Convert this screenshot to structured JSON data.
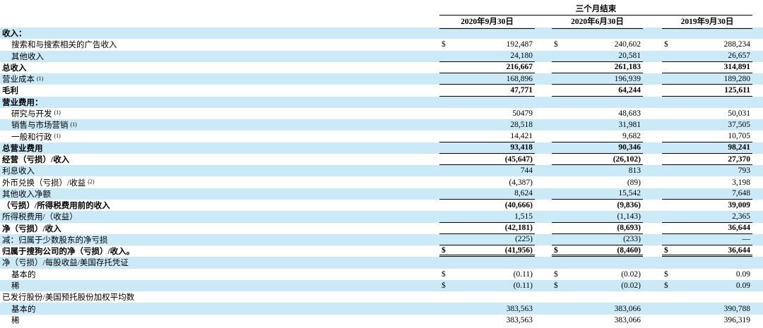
{
  "table": {
    "period_header": "三个月结束",
    "currency_symbol": "$",
    "columns": [
      "2020年9月30日",
      "2020年6月30日",
      "2019年9月30日"
    ],
    "rows": [
      {
        "label": "收入：",
        "sup": "",
        "indent": 0,
        "bold": true,
        "dollar": false,
        "values": [
          "",
          "",
          ""
        ],
        "border": "none"
      },
      {
        "label": "搜索和与搜索相关的广告收入",
        "sup": "",
        "indent": 1,
        "bold": false,
        "dollar": true,
        "values": [
          "192,487",
          "240,602",
          "288,234"
        ],
        "border": "none"
      },
      {
        "label": "其他收入",
        "sup": "",
        "indent": 1,
        "bold": false,
        "dollar": false,
        "values": [
          "24,180",
          "20,581",
          "26,657"
        ],
        "border": "bottom"
      },
      {
        "label": "总收入",
        "sup": "",
        "indent": 0,
        "bold": true,
        "dollar": false,
        "values": [
          "216,667",
          "261,183",
          "314,891"
        ],
        "border": "bottom"
      },
      {
        "label": "营业成本",
        "sup": "(1)",
        "indent": 0,
        "bold": false,
        "dollar": false,
        "values": [
          "168,896",
          "196,939",
          "189,280"
        ],
        "border": "bottom"
      },
      {
        "label": "毛利",
        "sup": "",
        "indent": 0,
        "bold": true,
        "dollar": false,
        "values": [
          "47,771",
          "64,244",
          "125,611"
        ],
        "border": "bottom"
      },
      {
        "label": "营业费用：",
        "sup": "",
        "indent": 0,
        "bold": true,
        "dollar": false,
        "values": [
          "",
          "",
          ""
        ],
        "border": "none"
      },
      {
        "label": "研究与开发",
        "sup": "(1)",
        "indent": 1,
        "bold": false,
        "dollar": false,
        "values": [
          "50479",
          "48,683",
          "50,031"
        ],
        "border": "none"
      },
      {
        "label": "销售与市场营销",
        "sup": "(1)",
        "indent": 1,
        "bold": false,
        "dollar": false,
        "values": [
          "28,518",
          "31,981",
          "37,505"
        ],
        "border": "none"
      },
      {
        "label": "一般和行政",
        "sup": "(1)",
        "indent": 1,
        "bold": false,
        "dollar": false,
        "values": [
          "14,421",
          "9,682",
          "10,705"
        ],
        "border": "bottom"
      },
      {
        "label": "总营业费用",
        "sup": "",
        "indent": 0,
        "bold": true,
        "dollar": false,
        "values": [
          "93,418",
          "90,346",
          "98,241"
        ],
        "border": "bottom"
      },
      {
        "label": "经营（亏损）/收入",
        "sup": "",
        "indent": 0,
        "bold": true,
        "dollar": false,
        "values": [
          "(45,647)",
          "(26,102)",
          "27,370"
        ],
        "border": "bottom"
      },
      {
        "label": "利息收入",
        "sup": "",
        "indent": 0,
        "bold": false,
        "dollar": false,
        "values": [
          "744",
          "813",
          "793"
        ],
        "border": "none"
      },
      {
        "label": "外币兑换（亏损）/收益",
        "sup": "(2)",
        "indent": 0,
        "bold": false,
        "dollar": false,
        "values": [
          "(4,387)",
          "(89)",
          "3,198"
        ],
        "border": "none"
      },
      {
        "label": "其他收入净额",
        "sup": "",
        "indent": 0,
        "bold": false,
        "dollar": false,
        "values": [
          "8,624",
          "15,542",
          "7,648"
        ],
        "border": "bottom"
      },
      {
        "label": "（亏损）/所得税费用前的收入",
        "sup": "",
        "indent": 0,
        "bold": true,
        "dollar": false,
        "values": [
          "(40,666)",
          "(9,836)",
          "39,009"
        ],
        "border": "none"
      },
      {
        "label": "所得税费用/（收益）",
        "sup": "",
        "indent": 0,
        "bold": false,
        "dollar": false,
        "values": [
          "1,515",
          "(1,143)",
          "2,365"
        ],
        "border": "bottom"
      },
      {
        "label": "净（亏损）/收入",
        "sup": "",
        "indent": 0,
        "bold": true,
        "dollar": false,
        "values": [
          "(42,181)",
          "(8,693)",
          "36,644"
        ],
        "border": "bottom"
      },
      {
        "label": "减：归属于少数股东的净亏损",
        "sup": "",
        "indent": 0,
        "bold": false,
        "dollar": false,
        "values": [
          "(225)",
          "(233)",
          "—"
        ],
        "border": "bottom"
      },
      {
        "label": "归属于搜狗公司的净（亏损）/收入。",
        "sup": "",
        "indent": 0,
        "bold": true,
        "dollar": true,
        "values": [
          "(41,956)",
          "(8,460)",
          "36,644"
        ],
        "border": "double"
      },
      {
        "label": "净（亏损）/每股收益/美国存托凭证",
        "sup": "",
        "indent": 0,
        "bold": false,
        "dollar": false,
        "values": [
          "",
          "",
          ""
        ],
        "border": "none"
      },
      {
        "label": "基本的",
        "sup": "",
        "indent": 1,
        "bold": false,
        "dollar": true,
        "values": [
          "(0.11)",
          "(0.02)",
          "0.09"
        ],
        "border": "none"
      },
      {
        "label": "稀",
        "sup": "",
        "indent": 1,
        "bold": false,
        "dollar": true,
        "values": [
          "(0.11)",
          "(0.02)",
          "0.09"
        ],
        "border": "none"
      },
      {
        "label": "已发行股份/美国预托股份加权平均数",
        "sup": "",
        "indent": 0,
        "bold": false,
        "dollar": false,
        "values": [
          "",
          "",
          ""
        ],
        "border": "none"
      },
      {
        "label": "基本的",
        "sup": "",
        "indent": 1,
        "bold": false,
        "dollar": false,
        "values": [
          "383,563",
          "383,066",
          "390,788"
        ],
        "border": "none"
      },
      {
        "label": "稀",
        "sup": "",
        "indent": 1,
        "bold": false,
        "dollar": false,
        "values": [
          "383,563",
          "383,066",
          "396,319"
        ],
        "border": "none"
      }
    ]
  },
  "colors": {
    "stripe": "#cce9f8",
    "rule": "#000000"
  }
}
